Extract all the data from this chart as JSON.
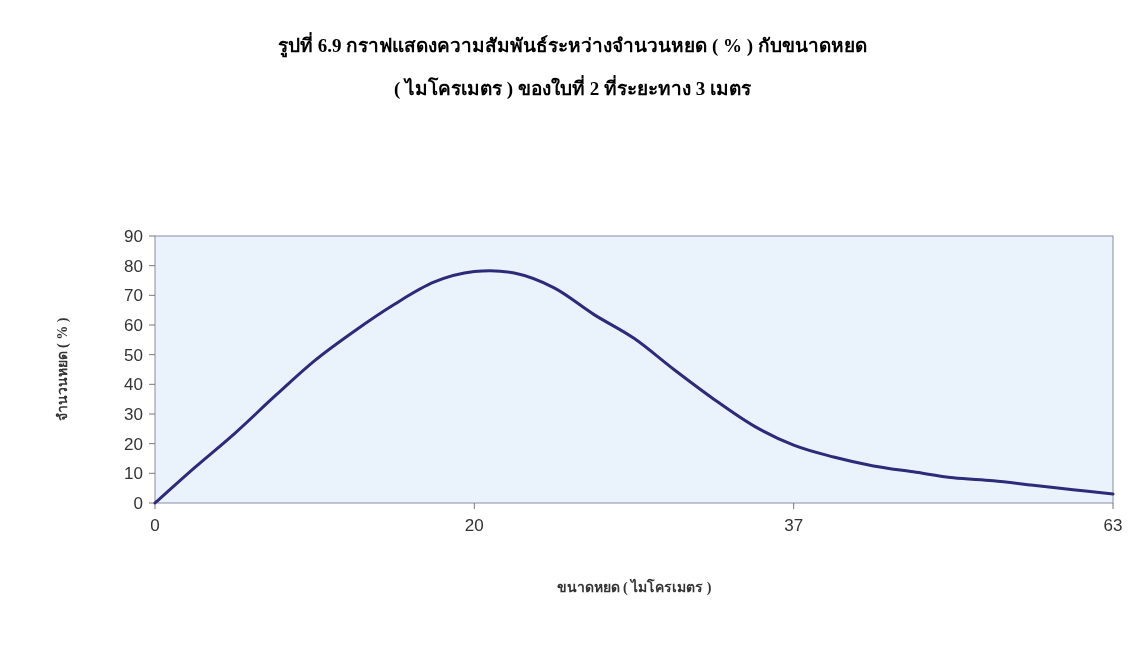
{
  "chart_data": {
    "type": "line",
    "title": "รูปที่ 6.9 กราฟแสดงความสัมพันธ์ระหว่างจำนวนหยด ( % ) กับขนาดหยด",
    "subtitle": "( ไมโครเมตร ) ของใบที่ 2 ที่ระยะทาง 3 เมตร",
    "xlabel": "ขนาดหยด ( ไมโครเมตร )",
    "ylabel": "จำนวนหยด ( % )",
    "categories": [
      "0",
      null,
      null,
      null,
      null,
      null,
      null,
      null,
      "20",
      null,
      null,
      null,
      null,
      null,
      null,
      null,
      "37",
      null,
      null,
      null,
      null,
      null,
      null,
      null,
      "63"
    ],
    "series": [
      {
        "color": "#2b2b7a",
        "values": [
          0,
          12,
          23.5,
          36,
          48,
          58,
          67,
          74.5,
          78,
          77.5,
          72.5,
          63.5,
          55.5,
          45,
          35,
          26,
          19.5,
          15.5,
          12.5,
          10.5,
          8.5,
          7.5,
          6,
          4.5,
          3
        ]
      }
    ],
    "ylim": [
      0,
      90
    ],
    "yticks": [
      0,
      10,
      20,
      30,
      40,
      50,
      60,
      70,
      80,
      90
    ],
    "grid": false,
    "marker": "none",
    "line_style": "solid"
  }
}
